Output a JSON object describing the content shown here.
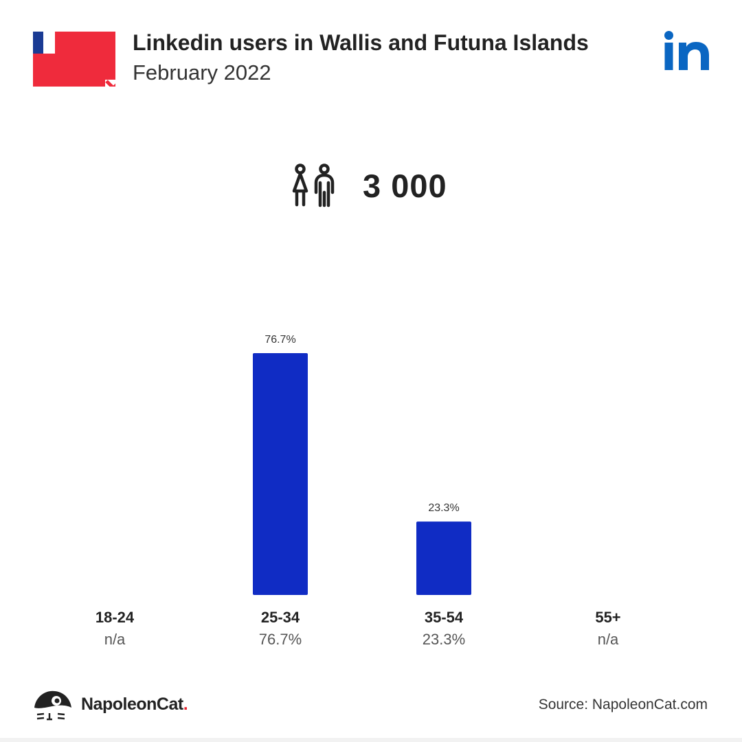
{
  "header": {
    "title": "Linkedin users in Wallis and Futuna Islands",
    "subtitle": "February 2022"
  },
  "total_users": "3 000",
  "footer": {
    "brand": "NapoleonCat",
    "brand_dot": ".",
    "source": "Source: NapoleonCat.com"
  },
  "colors": {
    "bar": "#102cc4",
    "linkedin": "#0a66c2",
    "flag_red": "#ef2b3c",
    "flag_blue": "#1a3b94"
  },
  "icons": [
    "wallis-futuna-flag-icon",
    "linkedin-logo-icon",
    "people-icon",
    "napoleoncat-logo-icon"
  ],
  "chart_data": {
    "type": "bar",
    "title": "",
    "xlabel": "",
    "ylabel": "",
    "categories": [
      "18-24",
      "25-34",
      "35-54",
      "55+"
    ],
    "values": [
      null,
      76.7,
      23.3,
      null
    ],
    "value_labels": [
      "n/a",
      "76.7%",
      "23.3%",
      "n/a"
    ],
    "ylim": [
      0,
      76.7
    ],
    "grid": false,
    "legend": "none"
  }
}
